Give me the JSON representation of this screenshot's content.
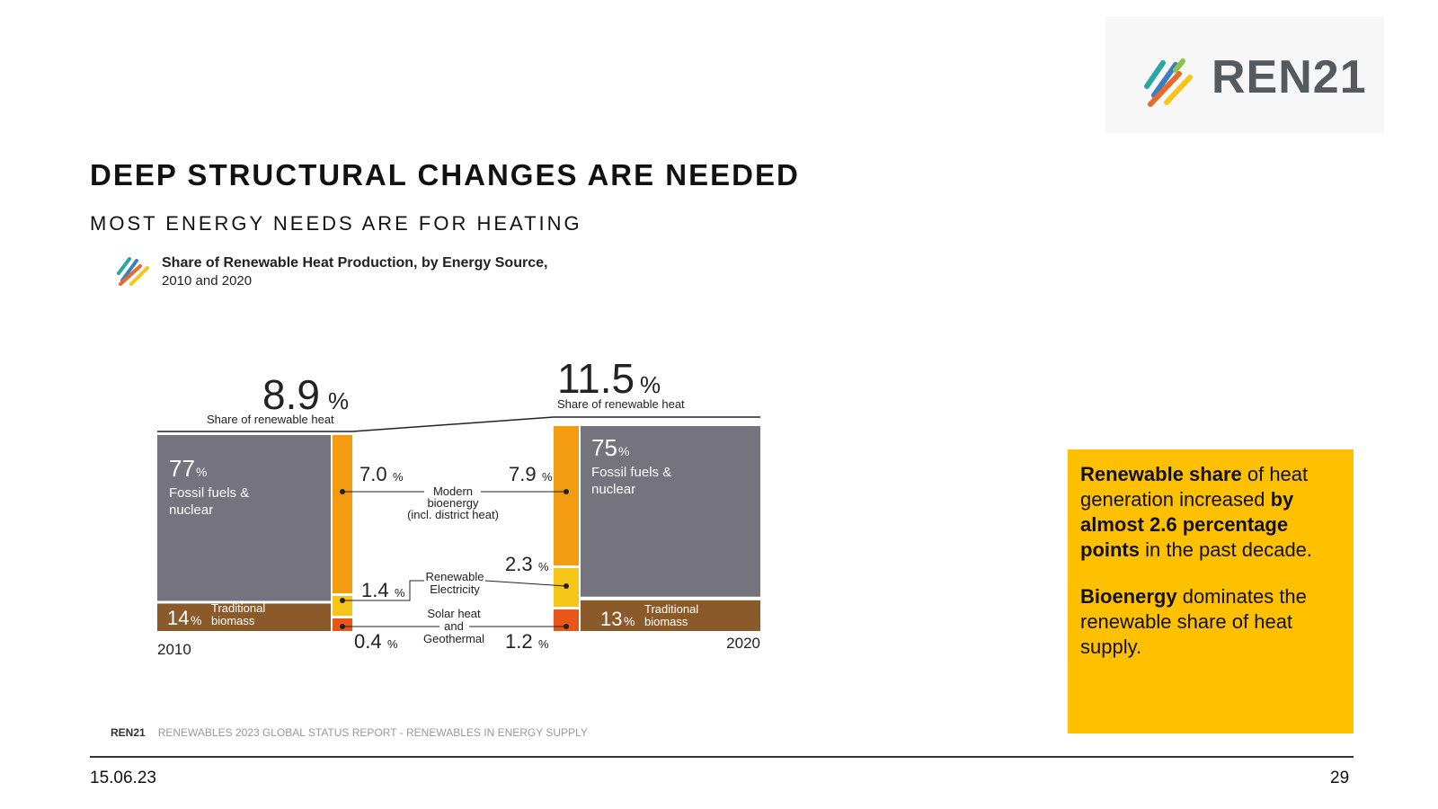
{
  "brand": {
    "name": "REN21"
  },
  "slide": {
    "title": "DEEP STRUCTURAL CHANGES ARE NEEDED",
    "subtitle": "MOST ENERGY NEEDS ARE FOR HEATING"
  },
  "chart_data": {
    "type": "bar",
    "title": "Share of Renewable Heat Production, by Energy Source,",
    "subtitle": "2010 and 2020",
    "renewable_share_label": "Share of renewable heat",
    "years": [
      "2010",
      "2020"
    ],
    "renewable_share": {
      "value_2010": "8.9",
      "value_2020": "11.5",
      "unit": "%"
    },
    "categories": [
      {
        "name": "Fossil fuels & nuclear",
        "line1": "Fossil fuels &",
        "line2": "nuclear",
        "value_2010": 77,
        "value_2020": 75,
        "color": "#75737e"
      },
      {
        "name": "Traditional biomass",
        "line1": "Traditional",
        "line2": "biomass",
        "value_2010": 14,
        "value_2020": 13,
        "color": "#8b5a2b"
      },
      {
        "name": "Modern bioenergy (incl. district heat)",
        "line1": "Modern",
        "line2": "bioenergy",
        "line3": "(incl. district heat)",
        "value_2010": 7.0,
        "value_2020": 7.9,
        "label_2010": "7.0",
        "label_2020": "7.9",
        "color": "#f39c12"
      },
      {
        "name": "Renewable Electricity",
        "line1": "Renewable",
        "line2": "Electricity",
        "value_2010": 1.4,
        "value_2020": 2.3,
        "label_2010": "1.4",
        "label_2020": "2.3",
        "color": "#f5c518"
      },
      {
        "name": "Solar heat and Geothermal",
        "line1": "Solar heat",
        "line2": "and",
        "line3": "Geothermal",
        "value_2010": 0.4,
        "value_2020": 1.2,
        "label_2010": "0.4",
        "label_2020": "1.2",
        "color": "#e8561a"
      }
    ],
    "unit": "%"
  },
  "callout": {
    "p1_bold1": "Renewable share",
    "p1_text1": " of heat generation increased ",
    "p1_bold2": "by almost 2.6 percentage points",
    "p1_text2": " in the past decade.",
    "p2_bold": "Bioenergy",
    "p2_text": " dominates the renewable share of heat supply.",
    "color": "#ffc000"
  },
  "footer": {
    "source_brand": "REN21",
    "source_text": "RENEWABLES 2023 GLOBAL STATUS REPORT - RENEWABLES IN ENERGY SUPPLY",
    "date": "15.06.23",
    "page": "29"
  }
}
